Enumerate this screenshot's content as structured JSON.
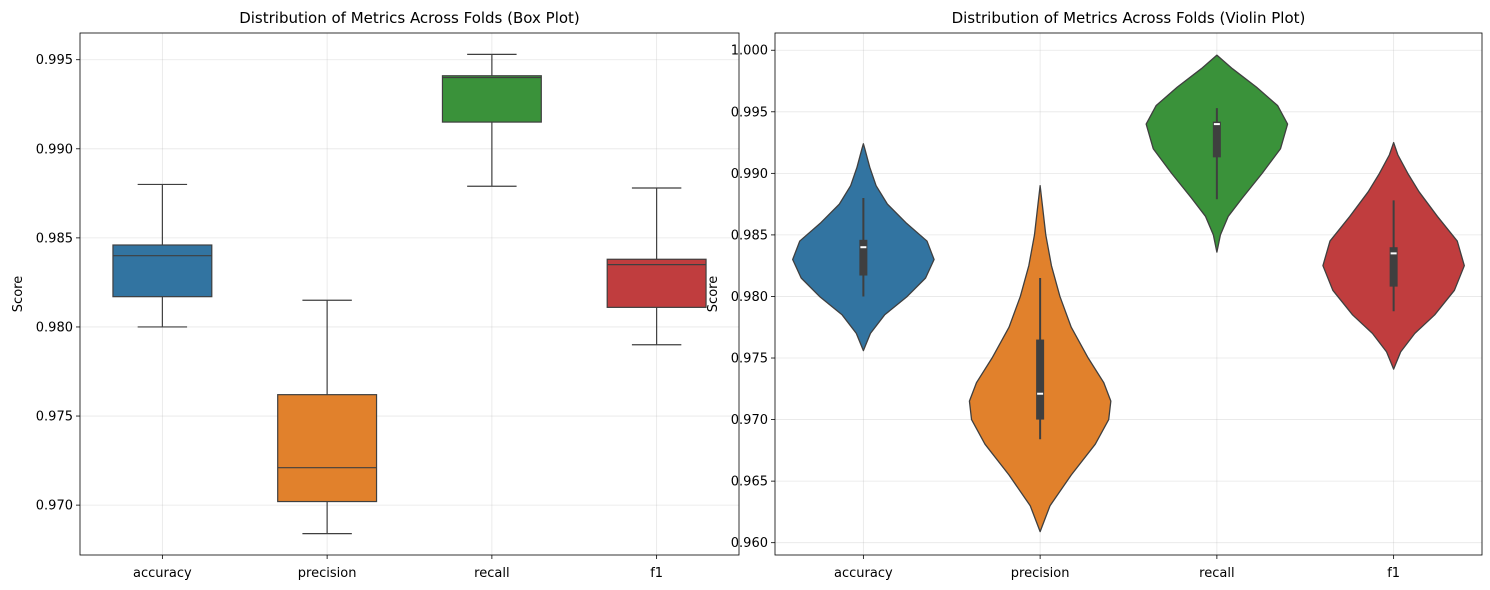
{
  "chart_data": [
    {
      "type": "box",
      "title": "Distribution of Metrics Across Folds (Box Plot)",
      "xlabel": "",
      "ylabel": "Score",
      "ylim": [
        0.9672,
        0.9965
      ],
      "yticks": [
        0.97,
        0.975,
        0.98,
        0.985,
        0.99,
        0.995
      ],
      "ytick_labels": [
        "0.970",
        "0.975",
        "0.980",
        "0.985",
        "0.990",
        "0.995"
      ],
      "grid": true,
      "categories": [
        "accuracy",
        "precision",
        "recall",
        "f1"
      ],
      "colors": [
        "#3274a1",
        "#e1812c",
        "#3a923a",
        "#c03d3e"
      ],
      "boxes": [
        {
          "category": "accuracy",
          "whislo": 0.98,
          "q1": 0.9817,
          "med": 0.984,
          "q3": 0.9846,
          "whishi": 0.988
        },
        {
          "category": "precision",
          "whislo": 0.9684,
          "q1": 0.9702,
          "med": 0.9721,
          "q3": 0.9762,
          "whishi": 0.9815
        },
        {
          "category": "recall",
          "whislo": 0.9879,
          "q1": 0.9915,
          "med": 0.994,
          "q3": 0.9941,
          "whishi": 0.9953
        },
        {
          "category": "f1",
          "whislo": 0.979,
          "q1": 0.9811,
          "med": 0.9835,
          "q3": 0.9838,
          "whishi": 0.9878
        }
      ]
    },
    {
      "type": "violin",
      "title": "Distribution of Metrics Across Folds (Violin Plot)",
      "xlabel": "",
      "ylabel": "Score",
      "ylim": [
        0.959,
        1.0014
      ],
      "yticks": [
        0.96,
        0.965,
        0.97,
        0.975,
        0.98,
        0.985,
        0.99,
        0.995,
        1.0
      ],
      "ytick_labels": [
        "0.960",
        "0.965",
        "0.970",
        "0.975",
        "0.980",
        "0.985",
        "0.990",
        "0.995",
        "1.000"
      ],
      "grid": true,
      "categories": [
        "accuracy",
        "precision",
        "recall",
        "f1"
      ],
      "colors": [
        "#3274a1",
        "#e1812c",
        "#3a923a",
        "#c03d3e"
      ],
      "violins": [
        {
          "category": "accuracy",
          "min": 0.98,
          "q1": 0.9817,
          "med": 0.984,
          "q3": 0.9846,
          "max": 0.988,
          "profile": [
            [
              0.9756,
              0.0
            ],
            [
              0.977,
              0.1
            ],
            [
              0.9785,
              0.3
            ],
            [
              0.98,
              0.62
            ],
            [
              0.9815,
              0.88
            ],
            [
              0.983,
              1.0
            ],
            [
              0.9845,
              0.9
            ],
            [
              0.986,
              0.6
            ],
            [
              0.9875,
              0.34
            ],
            [
              0.989,
              0.18
            ],
            [
              0.9905,
              0.09
            ],
            [
              0.992,
              0.02
            ],
            [
              0.9924,
              0.0
            ]
          ]
        },
        {
          "category": "precision",
          "min": 0.9684,
          "q1": 0.97,
          "med": 0.9721,
          "q3": 0.9765,
          "max": 0.9815,
          "profile": [
            [
              0.9609,
              0.0
            ],
            [
              0.963,
              0.14
            ],
            [
              0.9655,
              0.44
            ],
            [
              0.968,
              0.78
            ],
            [
              0.97,
              0.97
            ],
            [
              0.9715,
              1.0
            ],
            [
              0.973,
              0.9
            ],
            [
              0.975,
              0.68
            ],
            [
              0.9775,
              0.44
            ],
            [
              0.98,
              0.28
            ],
            [
              0.9825,
              0.16
            ],
            [
              0.985,
              0.08
            ],
            [
              0.9875,
              0.03
            ],
            [
              0.989,
              0.0
            ]
          ]
        },
        {
          "category": "recall",
          "min": 0.9879,
          "q1": 0.9913,
          "med": 0.994,
          "q3": 0.9942,
          "max": 0.9953,
          "profile": [
            [
              0.9836,
              0.0
            ],
            [
              0.985,
              0.05
            ],
            [
              0.9865,
              0.16
            ],
            [
              0.988,
              0.36
            ],
            [
              0.99,
              0.64
            ],
            [
              0.992,
              0.9
            ],
            [
              0.994,
              1.0
            ],
            [
              0.9955,
              0.86
            ],
            [
              0.997,
              0.56
            ],
            [
              0.9985,
              0.22
            ],
            [
              0.9995,
              0.02
            ],
            [
              0.9996,
              0.0
            ]
          ]
        },
        {
          "category": "f1",
          "min": 0.9788,
          "q1": 0.9808,
          "med": 0.9835,
          "q3": 0.984,
          "max": 0.9878,
          "profile": [
            [
              0.9741,
              0.0
            ],
            [
              0.9755,
              0.1
            ],
            [
              0.977,
              0.3
            ],
            [
              0.9785,
              0.58
            ],
            [
              0.9805,
              0.86
            ],
            [
              0.9825,
              1.0
            ],
            [
              0.9845,
              0.9
            ],
            [
              0.9865,
              0.62
            ],
            [
              0.9885,
              0.36
            ],
            [
              0.99,
              0.2
            ],
            [
              0.9915,
              0.06
            ],
            [
              0.9925,
              0.0
            ]
          ]
        }
      ]
    }
  ]
}
